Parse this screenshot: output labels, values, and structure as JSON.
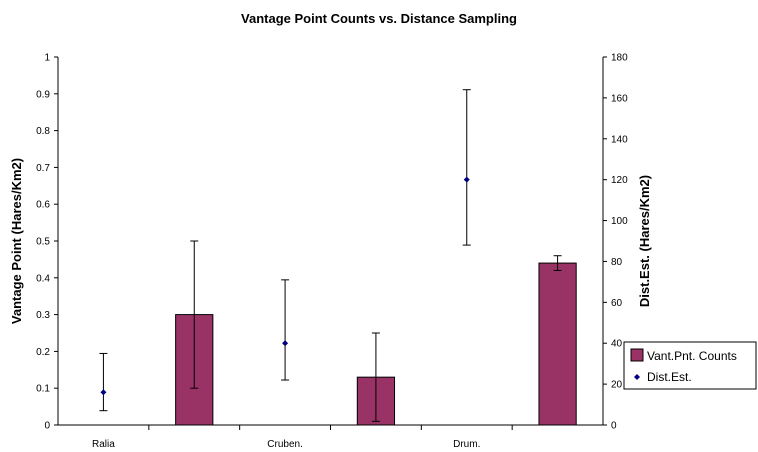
{
  "chart_data": {
    "type": "bar",
    "title": "Vantage Point Counts vs. Distance Sampling",
    "ylabel_left": "Vantage Point (Hares/Km2)",
    "ylabel_right": "Dist.Est. (Hares/Km2)",
    "left_axis": {
      "min": 0,
      "max": 1,
      "ticks": [
        "0",
        "0.1",
        "0.2",
        "0.3",
        "0.4",
        "0.5",
        "0.6",
        "0.7",
        "0.8",
        "0.9",
        "1"
      ]
    },
    "right_axis": {
      "min": 0,
      "max": 180,
      "ticks": [
        "0",
        "20",
        "40",
        "60",
        "80",
        "100",
        "120",
        "140",
        "160",
        "180"
      ]
    },
    "categories": [
      "Ralia",
      "Cruben.",
      "Drum."
    ],
    "series": [
      {
        "name": "Vant.Pnt. Counts",
        "kind": "bar",
        "axis": "left",
        "color": "#993366",
        "values": [
          0.3,
          0.13,
          0.44
        ],
        "err_low": [
          0.1,
          0.01,
          0.42
        ],
        "err_high": [
          0.5,
          0.25,
          0.46
        ]
      },
      {
        "name": "Dist.Est.",
        "kind": "scatter",
        "axis": "right",
        "color": "#000080",
        "values": [
          16,
          40,
          120
        ],
        "err_low": [
          7,
          22,
          88
        ],
        "err_high": [
          35,
          71,
          164
        ]
      }
    ],
    "legend_position": "right",
    "grid": false
  }
}
